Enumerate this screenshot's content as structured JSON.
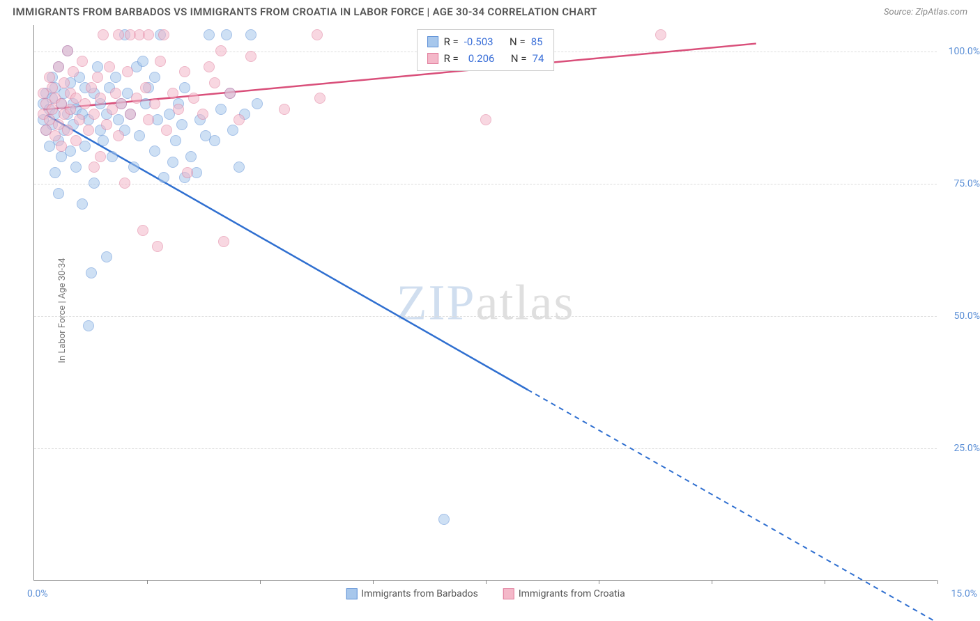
{
  "title": "IMMIGRANTS FROM BARBADOS VS IMMIGRANTS FROM CROATIA IN LABOR FORCE | AGE 30-34 CORRELATION CHART",
  "source_label": "Source:",
  "source_value": "ZipAtlas.com",
  "ylabel": "In Labor Force | Age 30-34",
  "watermark_a": "ZIP",
  "watermark_b": "atlas",
  "chart": {
    "type": "scatter",
    "xlim": [
      0,
      15
    ],
    "ylim": [
      0,
      105
    ],
    "x_tick_positions": [
      1.88,
      3.75,
      5.63,
      7.5,
      9.38,
      11.25,
      13.13,
      15
    ],
    "x_axis_min_label": "0.0%",
    "x_axis_max_label": "15.0%",
    "y_gridlines": [
      25,
      50,
      75,
      100
    ],
    "y_tick_labels": [
      "25.0%",
      "50.0%",
      "75.0%",
      "100.0%"
    ],
    "grid_color": "#dddddd",
    "axis_color": "#888888",
    "tick_label_color": "#5b8fd6",
    "background_color": "#ffffff",
    "series": [
      {
        "name": "Immigrants from Barbados",
        "fill": "#a7c7ec",
        "stroke": "#5b8fd6",
        "line_color": "#2f6fd0",
        "R": "-0.503",
        "N": "85",
        "trend": {
          "x1": 0.2,
          "y1": 88,
          "x2_solid": 8.2,
          "y2_solid": 36,
          "x2_dashed": 15,
          "y2_dashed": -8
        },
        "points": [
          [
            0.15,
            90
          ],
          [
            0.15,
            87
          ],
          [
            0.2,
            92
          ],
          [
            0.2,
            85
          ],
          [
            0.25,
            89
          ],
          [
            0.25,
            82
          ],
          [
            0.3,
            95
          ],
          [
            0.3,
            86
          ],
          [
            0.3,
            91
          ],
          [
            0.35,
            93
          ],
          [
            0.35,
            88
          ],
          [
            0.4,
            97
          ],
          [
            0.4,
            83
          ],
          [
            0.45,
            80
          ],
          [
            0.45,
            90
          ],
          [
            0.5,
            92
          ],
          [
            0.5,
            85
          ],
          [
            0.55,
            100
          ],
          [
            0.55,
            88
          ],
          [
            0.6,
            94
          ],
          [
            0.6,
            81
          ],
          [
            0.65,
            90
          ],
          [
            0.65,
            86
          ],
          [
            0.7,
            78
          ],
          [
            0.7,
            89
          ],
          [
            0.75,
            95
          ],
          [
            0.8,
            71
          ],
          [
            0.8,
            88
          ],
          [
            0.85,
            82
          ],
          [
            0.85,
            93
          ],
          [
            0.9,
            48
          ],
          [
            0.9,
            87
          ],
          [
            0.95,
            58
          ],
          [
            1.0,
            75
          ],
          [
            1.0,
            92
          ],
          [
            1.05,
            97
          ],
          [
            1.1,
            85
          ],
          [
            1.1,
            90
          ],
          [
            1.15,
            83
          ],
          [
            1.2,
            61
          ],
          [
            1.2,
            88
          ],
          [
            1.25,
            93
          ],
          [
            1.3,
            80
          ],
          [
            1.35,
            95
          ],
          [
            1.4,
            87
          ],
          [
            1.45,
            90
          ],
          [
            1.5,
            103
          ],
          [
            1.5,
            85
          ],
          [
            1.55,
            92
          ],
          [
            1.6,
            88
          ],
          [
            1.65,
            78
          ],
          [
            1.7,
            97
          ],
          [
            1.75,
            84
          ],
          [
            1.8,
            98
          ],
          [
            1.85,
            90
          ],
          [
            1.9,
            93
          ],
          [
            2.0,
            81
          ],
          [
            2.0,
            95
          ],
          [
            2.05,
            87
          ],
          [
            2.1,
            103
          ],
          [
            2.15,
            76
          ],
          [
            2.25,
            88
          ],
          [
            2.3,
            79
          ],
          [
            2.35,
            83
          ],
          [
            2.4,
            90
          ],
          [
            2.45,
            86
          ],
          [
            2.5,
            76
          ],
          [
            2.5,
            93
          ],
          [
            2.6,
            80
          ],
          [
            2.7,
            77
          ],
          [
            2.75,
            87
          ],
          [
            2.85,
            84
          ],
          [
            2.9,
            103
          ],
          [
            3.0,
            83
          ],
          [
            3.1,
            89
          ],
          [
            3.2,
            103
          ],
          [
            3.25,
            92
          ],
          [
            3.3,
            85
          ],
          [
            3.4,
            78
          ],
          [
            3.5,
            88
          ],
          [
            3.6,
            103
          ],
          [
            3.7,
            90
          ],
          [
            6.8,
            11.5
          ],
          [
            0.35,
            77
          ],
          [
            0.4,
            73
          ]
        ]
      },
      {
        "name": "Immigrants from Croatia",
        "fill": "#f4b8c9",
        "stroke": "#e07a9a",
        "line_color": "#d94f7a",
        "R": "0.206",
        "N": "74",
        "trend": {
          "x1": 0.15,
          "y1": 89,
          "x2_solid": 12.0,
          "y2_solid": 101.5,
          "x2_dashed": 12.0,
          "y2_dashed": 101.5
        },
        "points": [
          [
            0.15,
            88
          ],
          [
            0.15,
            92
          ],
          [
            0.2,
            85
          ],
          [
            0.2,
            90
          ],
          [
            0.25,
            87
          ],
          [
            0.25,
            95
          ],
          [
            0.3,
            89
          ],
          [
            0.3,
            93
          ],
          [
            0.35,
            84
          ],
          [
            0.35,
            91
          ],
          [
            0.4,
            97
          ],
          [
            0.4,
            86
          ],
          [
            0.45,
            90
          ],
          [
            0.45,
            82
          ],
          [
            0.5,
            94
          ],
          [
            0.5,
            88
          ],
          [
            0.55,
            100
          ],
          [
            0.55,
            85
          ],
          [
            0.6,
            92
          ],
          [
            0.6,
            89
          ],
          [
            0.65,
            96
          ],
          [
            0.7,
            83
          ],
          [
            0.7,
            91
          ],
          [
            0.75,
            87
          ],
          [
            0.8,
            98
          ],
          [
            0.85,
            90
          ],
          [
            0.9,
            85
          ],
          [
            0.95,
            93
          ],
          [
            1.0,
            88
          ],
          [
            1.05,
            95
          ],
          [
            1.1,
            80
          ],
          [
            1.1,
            91
          ],
          [
            1.15,
            103
          ],
          [
            1.2,
            86
          ],
          [
            1.25,
            97
          ],
          [
            1.3,
            89
          ],
          [
            1.35,
            92
          ],
          [
            1.4,
            84
          ],
          [
            1.4,
            103
          ],
          [
            1.45,
            90
          ],
          [
            1.5,
            75
          ],
          [
            1.55,
            96
          ],
          [
            1.6,
            103
          ],
          [
            1.6,
            88
          ],
          [
            1.7,
            91
          ],
          [
            1.75,
            103
          ],
          [
            1.8,
            66
          ],
          [
            1.85,
            93
          ],
          [
            1.9,
            87
          ],
          [
            1.9,
            103
          ],
          [
            2.0,
            90
          ],
          [
            2.05,
            63
          ],
          [
            2.1,
            98
          ],
          [
            2.15,
            103
          ],
          [
            2.2,
            85
          ],
          [
            2.3,
            92
          ],
          [
            2.4,
            89
          ],
          [
            2.5,
            96
          ],
          [
            2.55,
            77
          ],
          [
            2.65,
            91
          ],
          [
            2.8,
            88
          ],
          [
            2.9,
            97
          ],
          [
            3.0,
            94
          ],
          [
            3.1,
            100
          ],
          [
            3.15,
            64
          ],
          [
            3.25,
            92
          ],
          [
            3.4,
            87
          ],
          [
            3.6,
            99
          ],
          [
            4.15,
            89
          ],
          [
            4.7,
            103
          ],
          [
            4.75,
            91
          ],
          [
            7.5,
            87
          ],
          [
            10.4,
            103
          ],
          [
            1.0,
            78
          ]
        ]
      }
    ],
    "stats_labels": {
      "R": "R =",
      "N": "N ="
    },
    "legend_bottom": [
      {
        "label": "Immigrants from Barbados",
        "fill": "#a7c7ec",
        "stroke": "#5b8fd6"
      },
      {
        "label": "Immigrants from Croatia",
        "fill": "#f4b8c9",
        "stroke": "#e07a9a"
      }
    ]
  }
}
